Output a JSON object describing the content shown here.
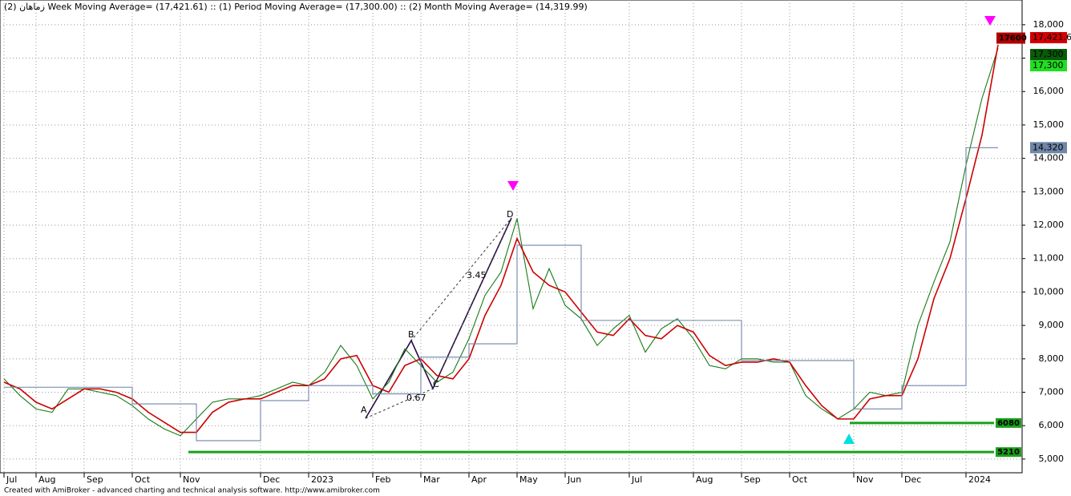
{
  "chart_data": {
    "type": "line",
    "symbol": "زماهان",
    "title": "(2) Week Moving Average= (17,421.61) :: (1) Period Moving Average= (17,300.00) :: (2) Month Moving Average= (14,319.99)",
    "footer": "Created with AmiBroker - advanced charting and technical analysis software. http://www.amibroker.com",
    "categories": [
      "Jul",
      null,
      "Aug",
      null,
      null,
      "Sep",
      null,
      null,
      "Oct",
      null,
      null,
      "Nov",
      null,
      null,
      null,
      null,
      "Dec",
      null,
      null,
      "2023",
      null,
      null,
      null,
      "Feb",
      null,
      null,
      "Mar",
      null,
      null,
      "Apr",
      null,
      null,
      "May",
      null,
      null,
      "Jun",
      null,
      null,
      null,
      "Jul",
      null,
      null,
      null,
      "Aug",
      null,
      null,
      "Sep",
      null,
      null,
      "Oct",
      null,
      null,
      null,
      "Nov",
      null,
      null,
      "Dec",
      null,
      null,
      null,
      "2024",
      null,
      null
    ],
    "series": [
      {
        "color": "#1a7a1a",
        "values": [
          7400,
          6900,
          6500,
          6400,
          7100,
          7100,
          7000,
          6900,
          6600,
          6200,
          5900,
          5700,
          6200,
          6700,
          6800,
          6800,
          6900,
          7100,
          7300,
          7200,
          7600,
          8400,
          7800,
          6800,
          7300,
          8300,
          7800,
          7300,
          7600,
          8600,
          9900,
          10600,
          12200,
          9500,
          10700,
          9600,
          9200,
          8400,
          8900,
          9300,
          8200,
          8900,
          9200,
          8600,
          7800,
          7700,
          8000,
          8000,
          7900,
          7900,
          6900,
          6500,
          6200,
          6500,
          7000,
          6900,
          7000,
          9000,
          10300,
          11500,
          13800,
          15800,
          17300
        ]
      },
      {
        "color": "#cc0000",
        "values": [
          7300,
          7100,
          6700,
          6500,
          6800,
          7100,
          7100,
          7000,
          6800,
          6400,
          6100,
          5800,
          5800,
          6400,
          6700,
          6800,
          6800,
          7000,
          7200,
          7200,
          7400,
          8000,
          8100,
          7200,
          7000,
          7800,
          8000,
          7500,
          7400,
          8000,
          9300,
          10200,
          11600,
          10600,
          10200,
          10000,
          9400,
          8800,
          8700,
          9200,
          8700,
          8600,
          9000,
          8800,
          8100,
          7800,
          7900,
          7900,
          8000,
          7900,
          7200,
          6600,
          6200,
          6200,
          6800,
          6900,
          6900,
          8000,
          9800,
          11000,
          12800,
          14700,
          17400
        ]
      },
      {
        "color": "#6f86a8",
        "step": true,
        "values": [
          7150,
          7150,
          7150,
          7150,
          7150,
          7150,
          7150,
          7150,
          6650,
          6650,
          6650,
          6650,
          5550,
          5550,
          5550,
          5550,
          6750,
          6750,
          6750,
          7200,
          7200,
          7200,
          7200,
          6950,
          6950,
          6950,
          8050,
          8050,
          8050,
          8450,
          8450,
          8450,
          11400,
          11400,
          11400,
          11400,
          9150,
          9150,
          9150,
          9150,
          9150,
          9150,
          9150,
          9150,
          9150,
          9150,
          7950,
          7950,
          7950,
          7950,
          7950,
          7950,
          7950,
          6500,
          6500,
          6500,
          7200,
          7200,
          7200,
          7200,
          14320,
          14320,
          14320
        ]
      }
    ],
    "ylim": [
      4590,
      18740
    ],
    "yticks": [
      {
        "value": 5000,
        "label": "5,000"
      },
      {
        "value": 6000,
        "label": "6,000"
      },
      {
        "value": 7000,
        "label": "7,000"
      },
      {
        "value": 8000,
        "label": "8,000"
      },
      {
        "value": 9000,
        "label": "9,000"
      },
      {
        "value": 10000,
        "label": "10,000"
      },
      {
        "value": 11000,
        "label": "11,000"
      },
      {
        "value": 12000,
        "label": "12,000"
      },
      {
        "value": 13000,
        "label": "13,000"
      },
      {
        "value": 14000,
        "label": "14,000"
      },
      {
        "value": 15000,
        "label": "15,000"
      },
      {
        "value": 16000,
        "label": "16,000"
      },
      {
        "value": 17000,
        "label": "17,000"
      },
      {
        "value": 18000,
        "label": "18,000"
      }
    ],
    "grid": true,
    "levels": [
      {
        "value": 6080,
        "color": "#1aa01a"
      },
      {
        "value": 5210,
        "color": "#1aa01a"
      }
    ],
    "price_tags": [
      {
        "value": 17421.6,
        "label": "17,421.6",
        "color": "#d40000"
      },
      {
        "value": 17600,
        "color": "#b00000"
      },
      {
        "value": 17300,
        "label": "17,300",
        "color": "#0a5a0a"
      },
      {
        "value": 17300,
        "label": "17,300",
        "color": "#22dd22"
      },
      {
        "value": 14320,
        "label": "14,320",
        "color": "#6f86a8"
      }
    ],
    "annotations": [
      "A",
      "B",
      "C",
      "D",
      "3.45",
      "0.67"
    ]
  }
}
